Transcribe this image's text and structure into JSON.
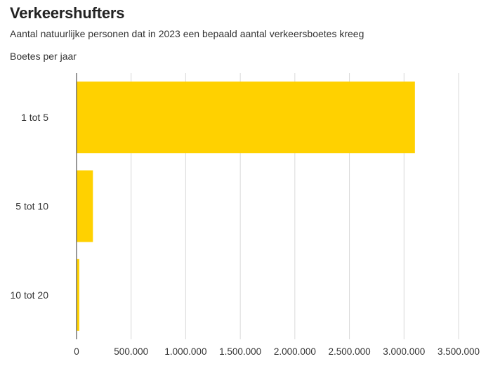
{
  "chart_data": {
    "type": "bar",
    "orientation": "horizontal",
    "title": "Verkeershufters",
    "subtitle": "Aantal natuurlijke personen dat in 2023 een bepaald aantal verkeersboetes kreeg",
    "ylabel": "Boetes per jaar",
    "xlabel": "",
    "categories": [
      "1 tot 5",
      "5 tot 10",
      "10 tot 20"
    ],
    "values": [
      3100000,
      150000,
      25000
    ],
    "xlim": [
      0,
      3500000
    ],
    "x_ticks": [
      0,
      500000,
      1000000,
      1500000,
      2000000,
      2500000,
      3000000,
      3500000
    ],
    "x_tick_labels": [
      "0",
      "500.000",
      "1.000.000",
      "1.500.000",
      "2.000.000",
      "2.500.000",
      "3.000.000",
      "3.500.000"
    ],
    "grid": true,
    "bar_color": "#FFD100",
    "grid_color": "#D9D9D9",
    "axis_color": "#555555"
  }
}
